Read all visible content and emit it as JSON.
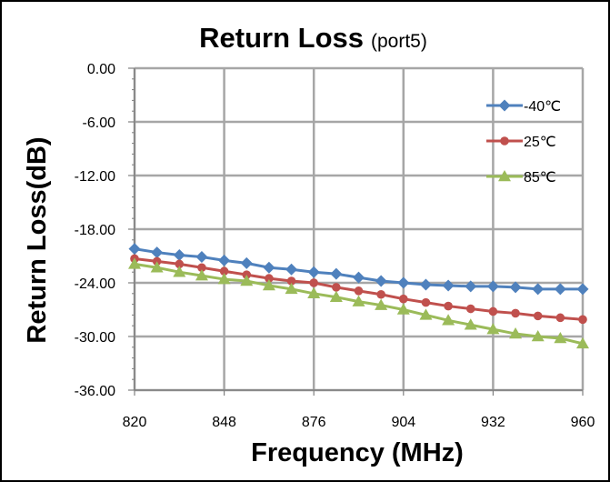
{
  "chart_data": {
    "type": "line",
    "title": "Return Loss",
    "subtitle": "(port5)",
    "xlabel": "Frequency (MHz)",
    "ylabel": "Return Loss(dB)",
    "xlim": [
      820,
      960
    ],
    "ylim": [
      -36,
      0
    ],
    "x_ticks": [
      "820",
      "848",
      "876",
      "904",
      "932",
      "960"
    ],
    "y_ticks": [
      "0.00",
      "-6.00",
      "-12.00",
      "-18.00",
      "-24.00",
      "-30.00",
      "-36.00"
    ],
    "grid": true,
    "legend_position": "top-right",
    "x": [
      820,
      827,
      834,
      841,
      848,
      855,
      862,
      869,
      876,
      883,
      890,
      897,
      904,
      911,
      918,
      925,
      932,
      939,
      946,
      953,
      960
    ],
    "series": [
      {
        "name": "-40℃",
        "color": "#4F81BD",
        "marker": "diamond",
        "values": [
          -20.2,
          -20.6,
          -20.9,
          -21.1,
          -21.5,
          -21.8,
          -22.3,
          -22.5,
          -22.8,
          -23.0,
          -23.4,
          -23.8,
          -24.0,
          -24.2,
          -24.3,
          -24.4,
          -24.4,
          -24.5,
          -24.7,
          -24.7,
          -24.7
        ]
      },
      {
        "name": "25℃",
        "color": "#C0504D",
        "marker": "circle",
        "values": [
          -21.3,
          -21.6,
          -21.9,
          -22.3,
          -22.7,
          -23.1,
          -23.5,
          -23.8,
          -24.0,
          -24.5,
          -24.9,
          -25.3,
          -25.8,
          -26.2,
          -26.6,
          -26.9,
          -27.2,
          -27.4,
          -27.7,
          -27.9,
          -28.1
        ]
      },
      {
        "name": "85℃",
        "color": "#9BBB59",
        "marker": "triangle",
        "values": [
          -21.9,
          -22.3,
          -22.8,
          -23.2,
          -23.6,
          -23.8,
          -24.3,
          -24.7,
          -25.2,
          -25.6,
          -26.1,
          -26.5,
          -27.0,
          -27.6,
          -28.2,
          -28.7,
          -29.2,
          -29.7,
          -30.0,
          -30.2,
          -30.8
        ]
      }
    ]
  }
}
